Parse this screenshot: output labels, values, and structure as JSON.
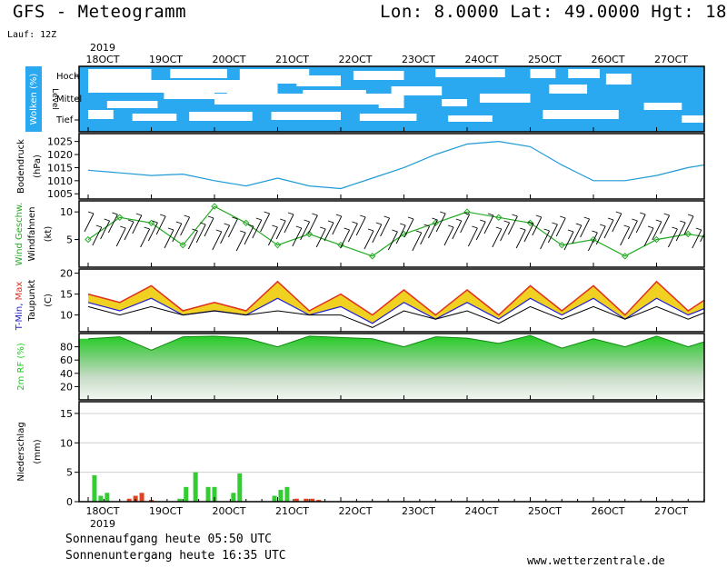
{
  "header": {
    "title": "GFS - Meteogramm",
    "coords": "Lon: 8.0000 Lat: 49.0000 Hgt: 18",
    "run": "Lauf: 12Z"
  },
  "footer": {
    "sunrise": "Sonnenaufgang heute 05:50 UTC",
    "sunset": "Sonnenuntergang heute 16:35 UTC",
    "source": "www.wetterzentrale.de"
  },
  "colors": {
    "cloud_blue": "#2aa8f0",
    "pressure_line": "#1e9ad6",
    "wind_green": "#22aa22",
    "tmax_red": "#e03020",
    "tmin_blue": "#2020d0",
    "band_yellow": "#f0d020",
    "humidity_green": "#22cc22",
    "precip_green": "#33cc33",
    "precip_red": "#dd4422"
  },
  "chart_data": [
    {
      "type": "heatmap",
      "panel": "clouds",
      "ylabel": "Wolken (%)",
      "ylabel2": "Level",
      "levels": [
        "Hoch",
        "Mittel",
        "Tief"
      ],
      "x_ticks": [
        "18OCT",
        "19OCT",
        "20OCT",
        "21OCT",
        "22OCT",
        "23OCT",
        "24OCT",
        "25OCT",
        "26OCT",
        "27OCT"
      ],
      "year": "2019"
    },
    {
      "type": "line",
      "panel": "pressure",
      "ylabel": "Bodendruck",
      "unit": "(hPa)",
      "y_ticks": [
        1005,
        1010,
        1015,
        1020,
        1025
      ],
      "ylim": [
        1003,
        1028
      ],
      "x": [
        0,
        0.5,
        1,
        1.5,
        2,
        2.5,
        3,
        3.5,
        4,
        4.5,
        5,
        5.5,
        6,
        6.5,
        7,
        7.5,
        8,
        8.5,
        9,
        9.5,
        10,
        10.5
      ],
      "values": [
        1014,
        1013,
        1012,
        1012.5,
        1010,
        1008,
        1011,
        1008,
        1007,
        1011,
        1015,
        1020,
        1024,
        1025,
        1023,
        1016,
        1010,
        1010,
        1012,
        1015,
        1017,
        1018.5
      ]
    },
    {
      "type": "line",
      "panel": "wind",
      "ylabel": "Wind Geschw.",
      "ylabel2": "Windfahnen",
      "unit": "(kt)",
      "y_ticks": [
        5,
        10
      ],
      "ylim": [
        0,
        12
      ],
      "x": [
        0,
        0.5,
        1,
        1.5,
        2,
        2.5,
        3,
        3.5,
        4,
        4.5,
        5,
        5.5,
        6,
        6.5,
        7,
        7.5,
        8,
        8.5,
        9,
        9.5,
        10,
        10.5
      ],
      "values": [
        5,
        9,
        8,
        4,
        11,
        8,
        4,
        6,
        4,
        2,
        6,
        8,
        10,
        9,
        8,
        4,
        5,
        2,
        5,
        6,
        5,
        9
      ]
    },
    {
      "type": "area",
      "panel": "temperature",
      "ylabel": "T-Min, Max",
      "ylabel2": "Taupunkt",
      "unit": "(C)",
      "y_ticks": [
        10,
        15,
        20
      ],
      "ylim": [
        6,
        21
      ],
      "x": [
        0,
        0.5,
        1,
        1.5,
        2,
        2.5,
        3,
        3.5,
        4,
        4.5,
        5,
        5.5,
        6,
        6.5,
        7,
        7.5,
        8,
        8.5,
        9,
        9.5,
        10,
        10.5
      ],
      "series": [
        {
          "name": "T-Max",
          "values": [
            15,
            13,
            17,
            11,
            13,
            11,
            18,
            11,
            15,
            10,
            16,
            10,
            16,
            10,
            17,
            11,
            17,
            10,
            18,
            11,
            16,
            12
          ]
        },
        {
          "name": "T-Min",
          "values": [
            13,
            11,
            14,
            10,
            11,
            10,
            14,
            10,
            12,
            8,
            13,
            9,
            13,
            9,
            14,
            10,
            14,
            9,
            14,
            10,
            13,
            11
          ]
        },
        {
          "name": "Taupunkt",
          "values": [
            12,
            10,
            12,
            10,
            11,
            10,
            11,
            10,
            10,
            7,
            11,
            9,
            11,
            8,
            12,
            9,
            12,
            9,
            12,
            9,
            12,
            11
          ]
        }
      ]
    },
    {
      "type": "area",
      "panel": "humidity",
      "ylabel": "2m RF",
      "unit": "(%)",
      "y_ticks": [
        20,
        40,
        60,
        80
      ],
      "ylim": [
        0,
        100
      ],
      "x": [
        0,
        0.5,
        1,
        1.5,
        2,
        2.5,
        3,
        3.5,
        4,
        4.5,
        5,
        5.5,
        6,
        6.5,
        7,
        7.5,
        8,
        8.5,
        9,
        9.5,
        10,
        10.5
      ],
      "values": [
        92,
        95,
        75,
        95,
        96,
        93,
        80,
        96,
        94,
        92,
        80,
        95,
        93,
        85,
        97,
        78,
        92,
        80,
        96,
        80,
        95,
        80
      ]
    },
    {
      "type": "bar",
      "panel": "precipitation",
      "ylabel": "Niederschlag",
      "unit": "(mm)",
      "y_ticks": [
        0,
        5,
        10,
        15
      ],
      "ylim": [
        0,
        17
      ],
      "x_ticks": [
        "18OCT",
        "19OCT",
        "20OCT",
        "21OCT",
        "22OCT",
        "23OCT",
        "24OCT",
        "25OCT",
        "26OCT",
        "27OCT"
      ],
      "year": "2019",
      "bars": [
        {
          "x": 0.1,
          "value": 4.5,
          "kind": "rain"
        },
        {
          "x": 0.2,
          "value": 1.0,
          "kind": "rain"
        },
        {
          "x": 0.3,
          "value": 1.5,
          "kind": "rain"
        },
        {
          "x": 0.65,
          "value": 0.5,
          "kind": "convective"
        },
        {
          "x": 0.75,
          "value": 1.0,
          "kind": "convective"
        },
        {
          "x": 0.85,
          "value": 1.5,
          "kind": "convective"
        },
        {
          "x": 1.0,
          "value": 0.3,
          "kind": "convective"
        },
        {
          "x": 1.45,
          "value": 0.5,
          "kind": "rain"
        },
        {
          "x": 1.55,
          "value": 2.5,
          "kind": "rain"
        },
        {
          "x": 1.7,
          "value": 5.0,
          "kind": "rain"
        },
        {
          "x": 1.9,
          "value": 2.5,
          "kind": "rain"
        },
        {
          "x": 2.0,
          "value": 2.5,
          "kind": "rain"
        },
        {
          "x": 2.3,
          "value": 1.5,
          "kind": "rain"
        },
        {
          "x": 2.4,
          "value": 4.8,
          "kind": "rain"
        },
        {
          "x": 2.95,
          "value": 1.0,
          "kind": "rain"
        },
        {
          "x": 3.05,
          "value": 2.0,
          "kind": "rain"
        },
        {
          "x": 3.15,
          "value": 2.5,
          "kind": "rain"
        },
        {
          "x": 3.3,
          "value": 0.5,
          "kind": "convective"
        },
        {
          "x": 3.45,
          "value": 0.5,
          "kind": "convective"
        },
        {
          "x": 3.55,
          "value": 0.5,
          "kind": "convective"
        },
        {
          "x": 3.65,
          "value": 0.3,
          "kind": "convective"
        }
      ]
    }
  ]
}
